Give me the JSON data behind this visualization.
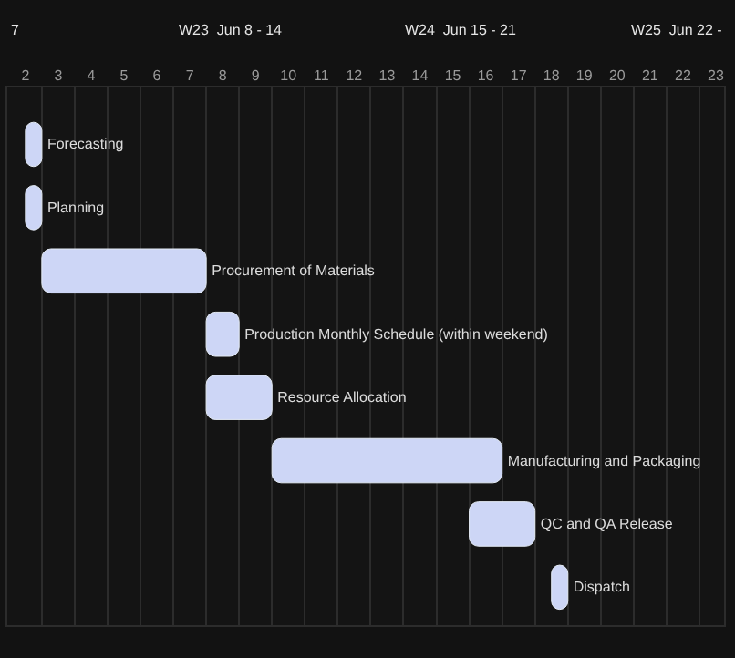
{
  "chart_data": {
    "type": "bar",
    "orientation": "horizontal",
    "categories": [
      "Forecasting",
      "Planning",
      "Procurement of Materials",
      "Production Monthly Schedule (within weekend)",
      "Resource Allocation",
      "Manufacturing and Packaging",
      "QC and QA Release",
      "Dispatch"
    ],
    "base": [
      2.5,
      2.5,
      3,
      8,
      8,
      10,
      16,
      18.5
    ],
    "values": [
      0.5,
      0.5,
      5,
      1,
      2,
      7,
      2,
      0.5
    ],
    "color": "#cdd6f6",
    "xlim": [
      1.95,
      23.75
    ],
    "xticks": [
      {
        "value": 2.5,
        "label": "2"
      },
      {
        "value": 3.5,
        "label": "3"
      },
      {
        "value": 4.5,
        "label": "4"
      },
      {
        "value": 5.5,
        "label": "5"
      },
      {
        "value": 6.5,
        "label": "6"
      },
      {
        "value": 7.5,
        "label": "7"
      },
      {
        "value": 8.5,
        "label": "8"
      },
      {
        "value": 9.5,
        "label": "9"
      },
      {
        "value": 10.5,
        "label": "10"
      },
      {
        "value": 11.5,
        "label": "11"
      },
      {
        "value": 12.5,
        "label": "12"
      },
      {
        "value": 13.5,
        "label": "13"
      },
      {
        "value": 14.5,
        "label": "14"
      },
      {
        "value": 15.5,
        "label": "15"
      },
      {
        "value": 16.5,
        "label": "16"
      },
      {
        "value": 17.5,
        "label": "17"
      },
      {
        "value": 18.5,
        "label": "18"
      },
      {
        "value": 19.5,
        "label": "19"
      },
      {
        "value": 20.5,
        "label": "20"
      },
      {
        "value": 21.5,
        "label": "21"
      },
      {
        "value": 22.5,
        "label": "22"
      },
      {
        "value": 23.5,
        "label": "23"
      }
    ],
    "annotations": [
      "7",
      "W23  Jun 8 - 14",
      "W24  Jun 15 - 21",
      "W25  Jun 22 -"
    ],
    "grid": "x",
    "tick_labels": "x"
  }
}
